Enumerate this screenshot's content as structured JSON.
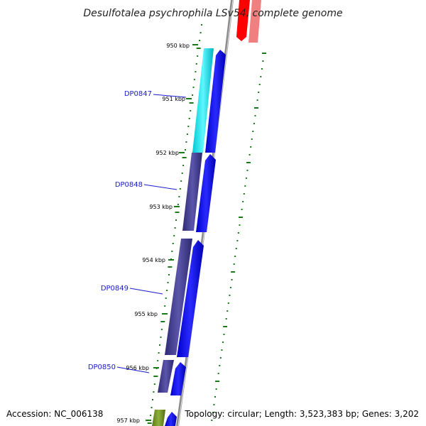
{
  "title": "Desulfotalea psychrophila LSv54, complete genome",
  "footer": {
    "accession": "Accession: NC_006138",
    "summary": "Topology: circular; Length: 3,523,383 bp; Genes: 3,202"
  },
  "ticks": [
    "950 kbp",
    "951 kbp",
    "952 kbp",
    "953 kbp",
    "954 kbp",
    "955 kbp",
    "956 kbp",
    "957 kbp"
  ],
  "gene_labels": [
    "DP0847",
    "DP0848",
    "DP0849",
    "DP0850"
  ],
  "colors": {
    "backbone": "#8c8c8c",
    "tick_marks": "#1a7a1a",
    "gene_label": "#1a1acc",
    "cds_forward": "#0a0aee",
    "feature_cyan": "#00e0e8",
    "feature_slate": "#3f3a8c",
    "feature_olive": "#6b8e23",
    "reverse_red": "#ff0000",
    "reverse_pink": "#f08080"
  }
}
